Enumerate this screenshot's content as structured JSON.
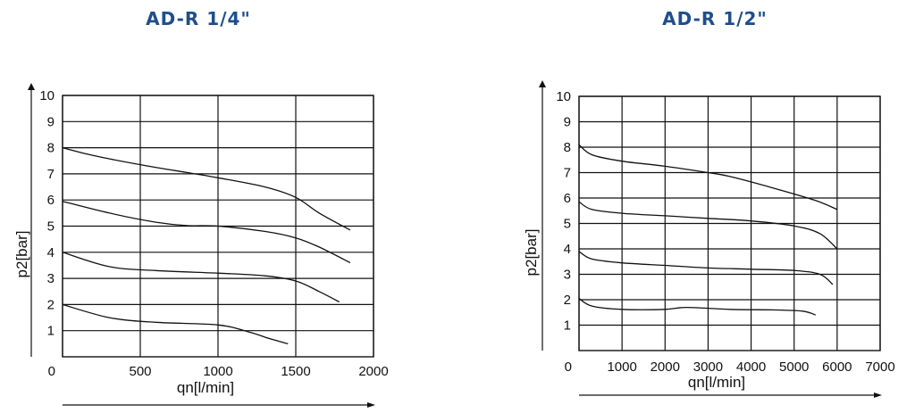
{
  "chart_data": [
    {
      "type": "line",
      "title": "AD-R 1/4\"",
      "xlabel": "qn[l/min]",
      "ylabel": "p2[bar]",
      "xlim": [
        0,
        2000
      ],
      "ylim": [
        0,
        10
      ],
      "xticks": [
        "0",
        "500",
        "1000",
        "1500",
        "2000"
      ],
      "yticks": [
        "1",
        "2",
        "3",
        "4",
        "5",
        "6",
        "7",
        "8",
        "9",
        "10"
      ],
      "grid": true,
      "series": [
        {
          "points": [
            [
              0,
              8.0
            ],
            [
              200,
              7.7
            ],
            [
              500,
              7.35
            ],
            [
              800,
              7.05
            ],
            [
              1000,
              6.85
            ],
            [
              1300,
              6.5
            ],
            [
              1500,
              6.1
            ],
            [
              1650,
              5.5
            ],
            [
              1850,
              4.85
            ]
          ]
        },
        {
          "points": [
            [
              0,
              5.95
            ],
            [
              300,
              5.5
            ],
            [
              600,
              5.15
            ],
            [
              800,
              5.02
            ],
            [
              1000,
              5.0
            ],
            [
              1300,
              4.8
            ],
            [
              1500,
              4.55
            ],
            [
              1650,
              4.2
            ],
            [
              1850,
              3.6
            ]
          ]
        },
        {
          "points": [
            [
              0,
              4.0
            ],
            [
              300,
              3.45
            ],
            [
              600,
              3.3
            ],
            [
              1000,
              3.2
            ],
            [
              1300,
              3.1
            ],
            [
              1500,
              2.9
            ],
            [
              1650,
              2.5
            ],
            [
              1780,
              2.1
            ]
          ]
        },
        {
          "points": [
            [
              0,
              2.0
            ],
            [
              300,
              1.5
            ],
            [
              600,
              1.32
            ],
            [
              1000,
              1.22
            ],
            [
              1200,
              0.95
            ],
            [
              1330,
              0.7
            ],
            [
              1450,
              0.5
            ]
          ]
        }
      ]
    },
    {
      "type": "line",
      "title": "AD-R 1/2\"",
      "xlabel": "qn[l/min]",
      "ylabel": "p2[bar]",
      "xlim": [
        0,
        7000
      ],
      "ylim": [
        0,
        10
      ],
      "xticks": [
        "0",
        "1000",
        "2000",
        "3000",
        "4000",
        "5000",
        "6000",
        "7000"
      ],
      "yticks": [
        "1",
        "2",
        "3",
        "4",
        "5",
        "6",
        "7",
        "8",
        "9",
        "10"
      ],
      "grid": true,
      "series": [
        {
          "points": [
            [
              0,
              8.1
            ],
            [
              300,
              7.7
            ],
            [
              1000,
              7.45
            ],
            [
              2000,
              7.25
            ],
            [
              3000,
              7.0
            ],
            [
              3500,
              6.85
            ],
            [
              4500,
              6.4
            ],
            [
              5500,
              5.9
            ],
            [
              6000,
              5.55
            ]
          ]
        },
        {
          "points": [
            [
              0,
              5.85
            ],
            [
              300,
              5.55
            ],
            [
              1000,
              5.4
            ],
            [
              2000,
              5.3
            ],
            [
              3000,
              5.2
            ],
            [
              4000,
              5.1
            ],
            [
              5000,
              4.9
            ],
            [
              5600,
              4.6
            ],
            [
              6000,
              4.0
            ]
          ]
        },
        {
          "points": [
            [
              0,
              3.9
            ],
            [
              300,
              3.6
            ],
            [
              1000,
              3.45
            ],
            [
              2000,
              3.35
            ],
            [
              3000,
              3.25
            ],
            [
              4000,
              3.2
            ],
            [
              5000,
              3.15
            ],
            [
              5600,
              3.0
            ],
            [
              5900,
              2.6
            ]
          ]
        },
        {
          "points": [
            [
              0,
              2.05
            ],
            [
              300,
              1.75
            ],
            [
              1000,
              1.62
            ],
            [
              2000,
              1.62
            ],
            [
              2500,
              1.7
            ],
            [
              3500,
              1.62
            ],
            [
              4500,
              1.6
            ],
            [
              5200,
              1.55
            ],
            [
              5500,
              1.4
            ]
          ]
        }
      ]
    }
  ]
}
